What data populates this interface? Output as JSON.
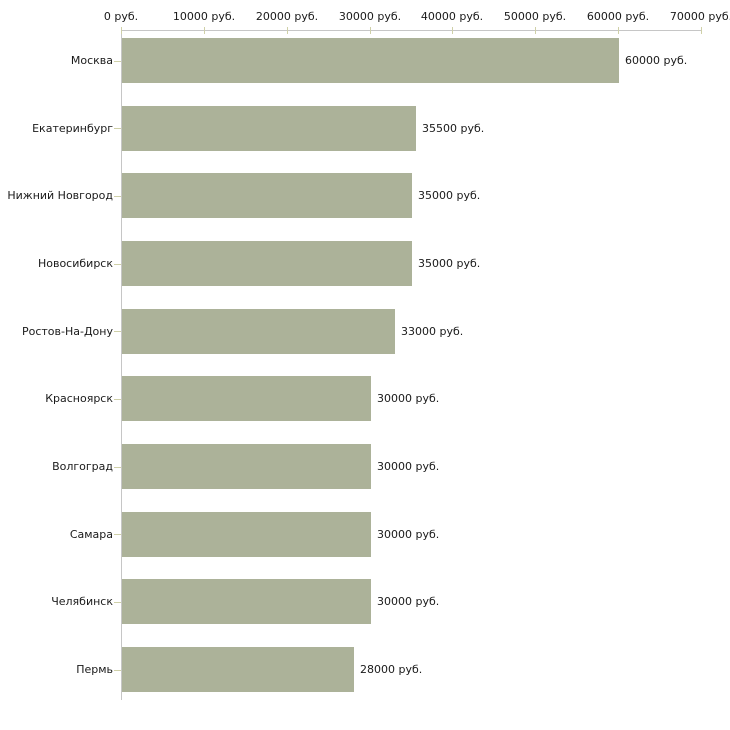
{
  "chart_data": {
    "type": "bar",
    "orientation": "horizontal",
    "title": "",
    "categories": [
      "Москва",
      "Екатеринбург",
      "Нижний Новгород",
      "Новосибирск",
      "Ростов-На-Дону",
      "Красноярск",
      "Волгоград",
      "Самара",
      "Челябинск",
      "Пермь"
    ],
    "values": [
      60000,
      35500,
      35000,
      35000,
      33000,
      30000,
      30000,
      30000,
      30000,
      28000
    ],
    "value_labels": [
      "60000 руб.",
      "35500 руб.",
      "35000 руб.",
      "35000 руб.",
      "33000 руб.",
      "30000 руб.",
      "30000 руб.",
      "30000 руб.",
      "30000 руб.",
      "28000 руб."
    ],
    "unit": "руб.",
    "x_axis": {
      "position": "top",
      "min": 0,
      "max": 70000,
      "ticks": [
        0,
        10000,
        20000,
        30000,
        40000,
        50000,
        60000,
        70000
      ],
      "tick_labels": [
        "0 руб.",
        "10000 руб.",
        "20000 руб.",
        "30000 руб.",
        "40000 руб.",
        "50000 руб.",
        "60000 руб.",
        "70000 руб."
      ]
    },
    "legend": null,
    "grid": false,
    "colors": {
      "bar": "#acb299",
      "axis_line": "#c6c6c6",
      "tick_mark": "#cfd0a8",
      "text": "#1a1a1a",
      "background": "#ffffff"
    }
  }
}
